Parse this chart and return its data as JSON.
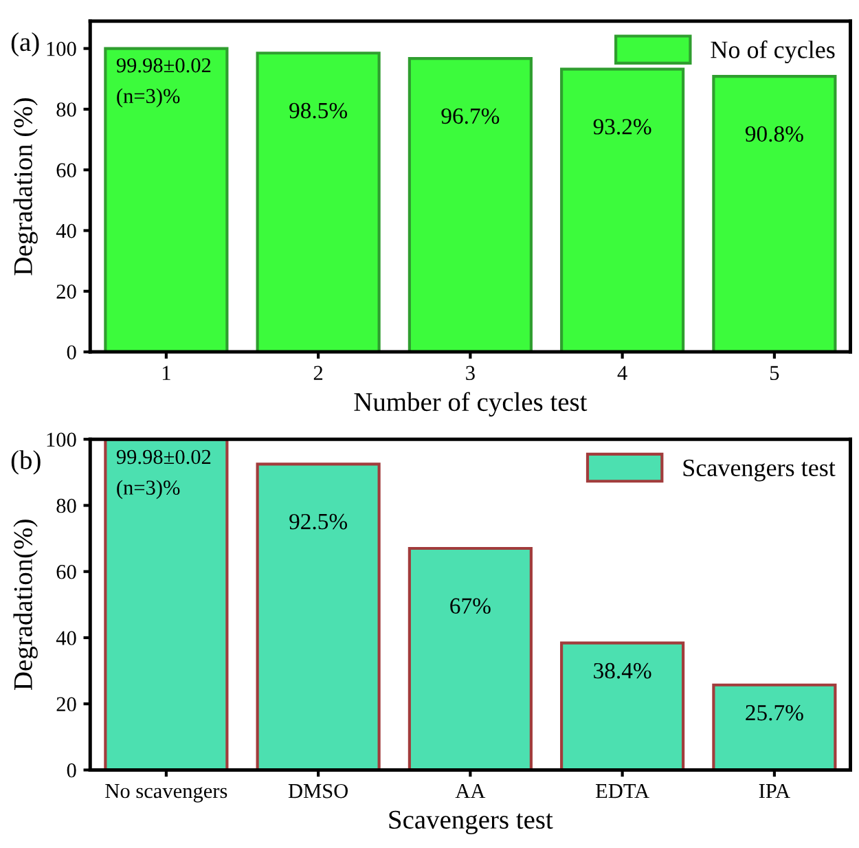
{
  "chart_data": [
    {
      "type": "bar",
      "xlabel": "Number of cycles test",
      "ylabel": "Degradation (%)",
      "categories": [
        "1",
        "2",
        "3",
        "4",
        "5"
      ],
      "series": [
        {
          "name": "No of cycles",
          "color": "#3cfb3c",
          "values": [
            99.98,
            98.5,
            96.7,
            93.2,
            90.8
          ],
          "value_labels": [
            "99.98±0.02\n(n=3)%",
            "98.5%",
            "96.7%",
            "93.2%",
            "90.8%"
          ]
        }
      ],
      "ylim": [
        0,
        109
      ],
      "yticks": [
        0,
        20,
        40,
        60,
        80,
        100
      ],
      "legend": "top right",
      "grid": false,
      "annotations": [
        "(a)"
      ]
    },
    {
      "type": "bar",
      "xlabel": "Scavengers test",
      "ylabel": "Degradation(%)",
      "categories": [
        "No scavengers",
        "DMSO",
        "AA",
        "EDTA",
        "IPA"
      ],
      "series": [
        {
          "name": "Scavengers test",
          "color": "#4ce0b0",
          "values": [
            99.98,
            92.5,
            67,
            38.4,
            25.7
          ],
          "value_labels": [
            "99.98±0.02\n(n=3)%",
            "92.5%",
            "67%",
            "38.4%",
            "25.7%"
          ]
        }
      ],
      "ylim": [
        0,
        100
      ],
      "yticks": [
        0,
        20,
        40,
        60,
        80,
        100
      ],
      "legend": "top right",
      "grid": false,
      "annotations": [
        "(b)"
      ]
    }
  ]
}
